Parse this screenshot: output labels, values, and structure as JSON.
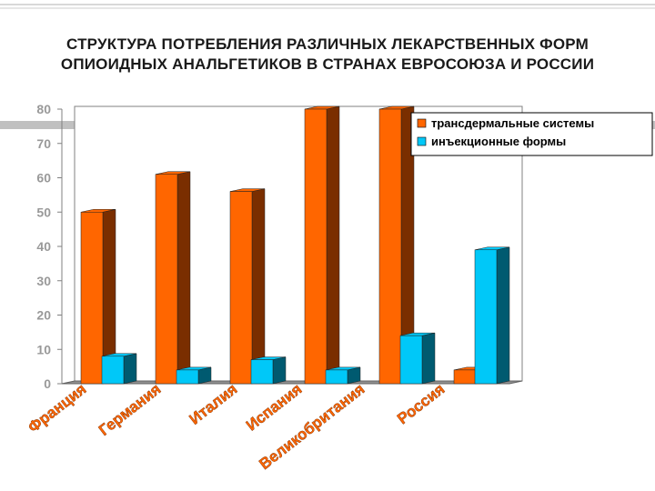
{
  "title_line1": "СТРУКТУРА ПОТРЕБЛЕНИЯ РАЗЛИЧНЫХ ЛЕКАРСТВЕННЫХ ФОРМ",
  "title_line2": "ОПИОИДНЫХ АНАЛЬГЕТИКОВ В СТРАНАХ ЕВРОСОЮЗА И РОССИИ",
  "colors": {
    "series1_front": "#ff6600",
    "series1_side": "#7a2e00",
    "series2_front": "#00c8f8",
    "series2_side": "#005a70",
    "band": "#c0c0c0",
    "tick_text": "#999999",
    "category_text": "#ff6600"
  },
  "chart_data": {
    "type": "bar",
    "categories": [
      "Франция",
      "Германия",
      "Италия",
      "Испания",
      "Великобритания",
      "Россия"
    ],
    "series": [
      {
        "name": "трансдермальные системы",
        "values": [
          50,
          61,
          56,
          80,
          80,
          4
        ]
      },
      {
        "name": "инъекционные формы",
        "values": [
          8,
          4,
          7,
          4,
          14,
          39
        ]
      }
    ],
    "ylim": [
      0,
      80
    ],
    "yticks": [
      "0",
      "10",
      "20",
      "30",
      "40",
      "50",
      "60",
      "70",
      "80"
    ],
    "grid": false,
    "legend_position": "top-right",
    "three_d": true
  }
}
